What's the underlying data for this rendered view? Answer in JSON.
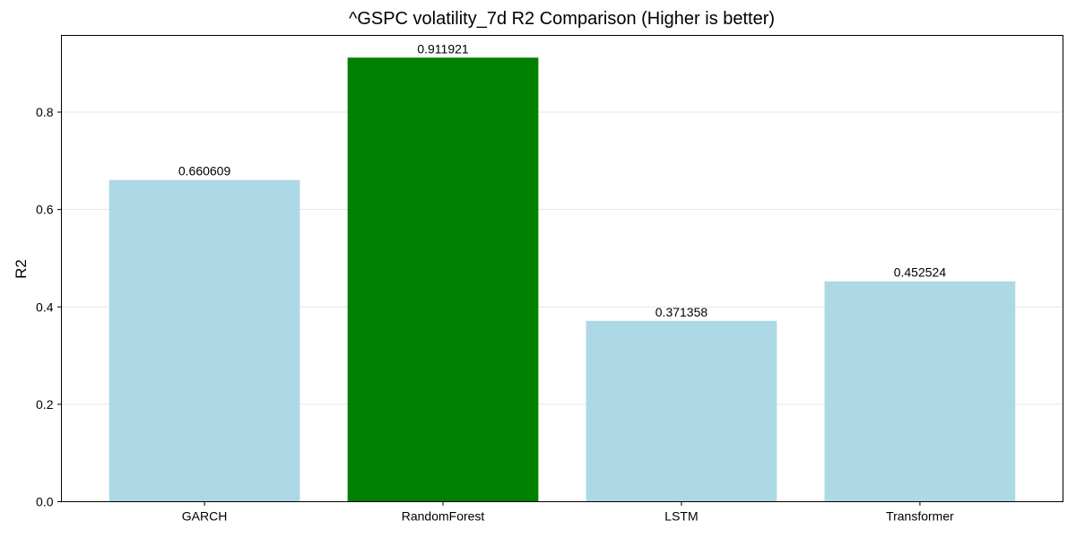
{
  "chart_data": {
    "type": "bar",
    "title": "^GSPC volatility_7d R2 Comparison (Higher is better)",
    "xlabel": "",
    "ylabel": "R2",
    "categories": [
      "GARCH",
      "RandomForest",
      "LSTM",
      "Transformer"
    ],
    "values": [
      0.660609,
      0.911921,
      0.371358,
      0.452524
    ],
    "value_labels": [
      "0.660609",
      "0.911921",
      "0.371358",
      "0.452524"
    ],
    "bar_colors": [
      "#add8e6",
      "#008000",
      "#add8e6",
      "#add8e6"
    ],
    "yticks": [
      0.0,
      0.2,
      0.4,
      0.6,
      0.8
    ],
    "ytick_labels": [
      "0.0",
      "0.2",
      "0.4",
      "0.6",
      "0.8"
    ],
    "ylim": [
      0,
      0.9575
    ],
    "grid": "y-axis, light gray",
    "legend": "none",
    "highlight_color": "#008000",
    "default_color": "#add8e6"
  }
}
